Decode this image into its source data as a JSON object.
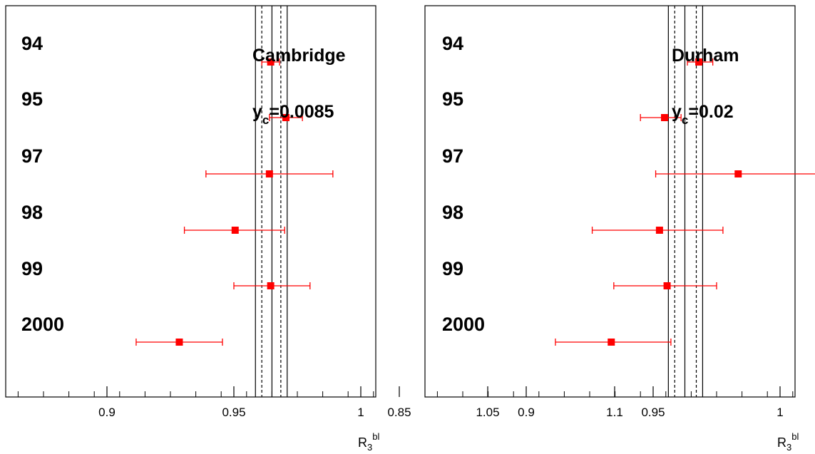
{
  "chart_data": [
    {
      "type": "scatter",
      "title": "",
      "xlabel": "R_3^bl",
      "xlabel_main": "R",
      "xlabel_sub": "3",
      "xlabel_sup": "bl",
      "annotation_line1": "Cambridge",
      "annotation_line2_main": "y",
      "annotation_line2_sub": "c",
      "annotation_line2_rest": "=0.0085",
      "xlim": [
        0.825,
        1.12
      ],
      "xticks": [
        0.85,
        0.9,
        0.95,
        1.0,
        1.05,
        1.1
      ],
      "xtick_labels": [
        "0.85",
        "0.9",
        "0.95",
        "1",
        "1.05",
        "1.1"
      ],
      "grid": false,
      "series": [
        {
          "categories": [
            "94",
            "95",
            "97",
            "98",
            "99",
            "2000"
          ],
          "x": [
            0.9645,
            0.9705,
            0.964,
            0.9505,
            0.9645,
            0.9285
          ],
          "xerr_low": [
            0.961,
            0.964,
            0.939,
            0.9305,
            0.95,
            0.9115
          ],
          "xerr_high": [
            0.968,
            0.977,
            0.989,
            0.97,
            0.98,
            0.9455
          ],
          "color": "#ff0000"
        }
      ],
      "band": {
        "central": 0.965,
        "stat": [
          0.961,
          0.9685
        ],
        "total": [
          0.9585,
          0.971
        ]
      }
    },
    {
      "type": "scatter",
      "title": "",
      "xlabel": "R_3^bl",
      "xlabel_main": "R",
      "xlabel_sub": "3",
      "xlabel_sup": "bl",
      "annotation_line1": "Durham",
      "annotation_line2_main": "y",
      "annotation_line2_sub": "c",
      "annotation_line2_rest": "=0.02",
      "xlim": [
        0.825,
        1.12
      ],
      "xticks": [
        0.85,
        0.9,
        0.95,
        1.0,
        1.05,
        1.1
      ],
      "xtick_labels": [
        "0.85",
        "0.9",
        "0.95",
        "1",
        "1.05",
        "1.1"
      ],
      "grid": false,
      "series": [
        {
          "categories": [
            "94",
            "95",
            "97",
            "98",
            "99",
            "2000"
          ],
          "x": [
            0.968,
            0.9545,
            0.9835,
            0.9525,
            0.9555,
            0.9335
          ],
          "xerr_low": [
            0.9635,
            0.945,
            0.951,
            0.926,
            0.9345,
            0.9115
          ],
          "xerr_high": [
            0.9735,
            0.961,
            1.017,
            0.9775,
            0.975,
            0.957
          ],
          "color": "#ff0000"
        }
      ],
      "band": {
        "central": 0.9625,
        "stat": [
          0.9585,
          0.967
        ],
        "total": [
          0.956,
          0.9695
        ]
      }
    }
  ]
}
